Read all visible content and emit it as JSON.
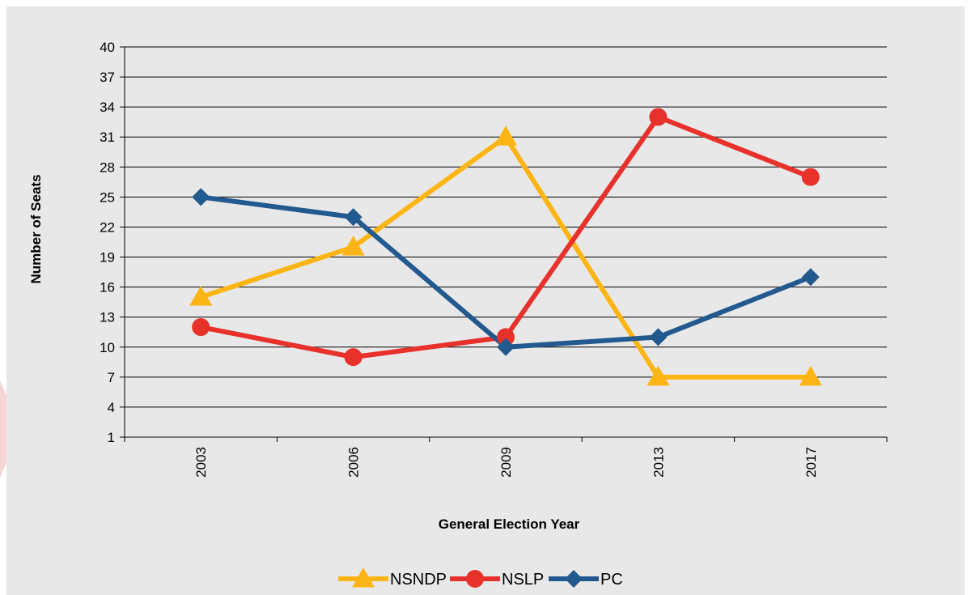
{
  "chart_data": {
    "type": "line",
    "title": "",
    "xlabel": "General Election Year",
    "ylabel": "Number of Seats",
    "categories": [
      "2003",
      "2006",
      "2009",
      "2013",
      "2017"
    ],
    "ylim": [
      1,
      40
    ],
    "yticks": [
      1,
      4,
      7,
      10,
      13,
      16,
      19,
      22,
      25,
      28,
      31,
      34,
      37,
      40
    ],
    "grid": true,
    "legend": "bottom-center",
    "series": [
      {
        "name": "NSNDP",
        "color": "#fdb515",
        "marker": "triangle",
        "values": [
          15,
          20,
          31,
          7,
          7
        ]
      },
      {
        "name": "NSLP",
        "color": "#e8312b",
        "marker": "circle",
        "values": [
          12,
          9,
          11,
          33,
          27
        ]
      },
      {
        "name": "PC",
        "color": "#22598e",
        "marker": "diamond",
        "values": [
          25,
          23,
          10,
          11,
          17
        ]
      }
    ]
  }
}
